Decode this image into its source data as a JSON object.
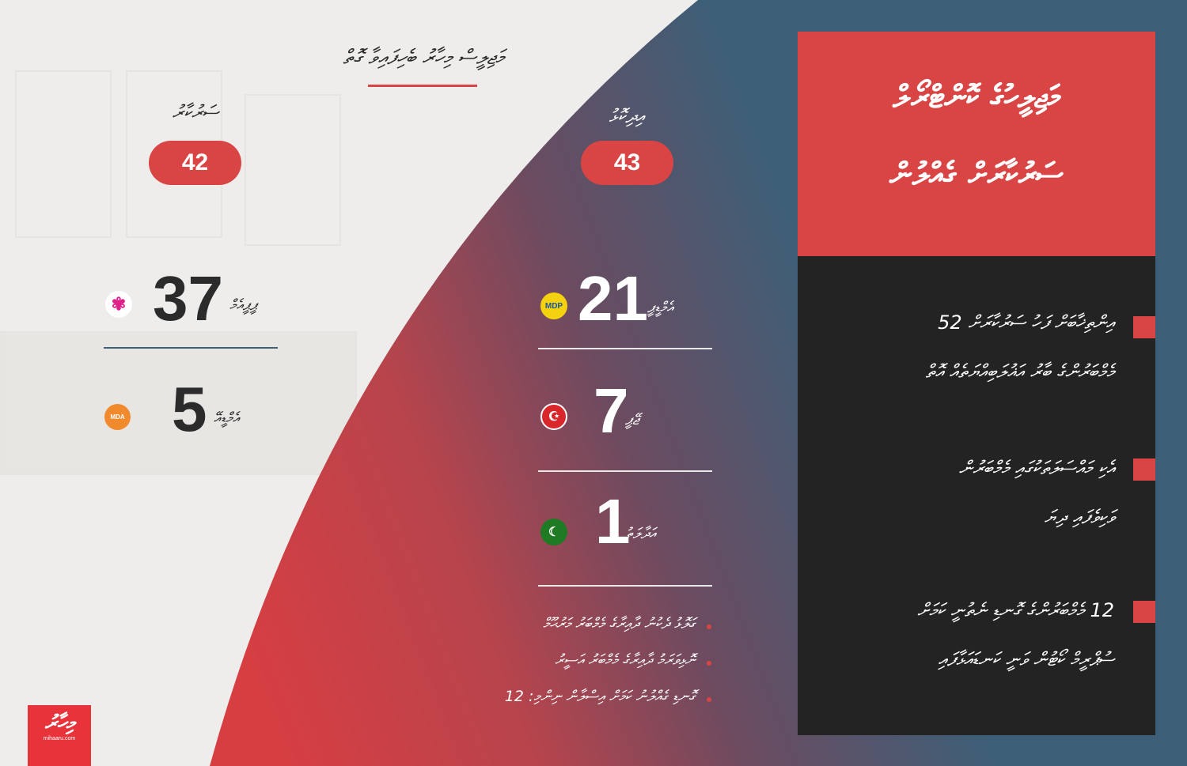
{
  "colors": {
    "accent": "#d94444",
    "dark": "#232323",
    "slate": "#3f6078"
  },
  "header": {
    "title": "މަޖިލީސް މިހާރު ބެހިފައިވާ ގޮތް"
  },
  "government": {
    "label": "ސަރުކާރު",
    "total": "42",
    "parties": [
      {
        "name": "ޕީޕީއެމް",
        "seats": "37",
        "logo": "ppm-palm-logo-icon"
      },
      {
        "name": "އެމްޑީއޭ",
        "seats": "5",
        "logo": "mda-logo-icon",
        "logo_text": "MDA"
      }
    ]
  },
  "opposition": {
    "label": "އިދިކޮޅު",
    "total": "43",
    "parties": [
      {
        "name": "އެމްޑީޕީ",
        "seats": "21",
        "logo": "mdp-scales-logo-icon",
        "logo_text": "MDP"
      },
      {
        "name": "ޖޭޕީ",
        "seats": "7",
        "logo": "jp-crescent-star-logo-icon"
      },
      {
        "name": "އަދާލަތު",
        "seats": "1",
        "logo": "adhaalath-logo-icon"
      }
    ]
  },
  "notes": [
    "ގަލޮޅު ދެކުނު ދާއިރާގެ މެމްބަރު މަރުޙޫމް",
    "ނޮޅިވަރަމު ދާއިރާގެ މެމްބަރު އަސީރު",
    "ގޮނޑި ގެއްލުނު ކަމަށް އިސްލާން ނިންމި: 12"
  ],
  "card": {
    "title_line1": "މަޖިލީހުގެ ކޮންޓްރޯލް",
    "title_line2": "ސަރުކާރަށް ގެއްލުން",
    "points": [
      {
        "line1": "އިންތިޚާބަށް ފަހު ސަރުކާރަށް 52",
        "line2": "މެމްބަރުންގެ ބާރު އަޣުލަބިއްޔަތެއް އޮތް"
      },
      {
        "line1": "އެކި މައްސަލަތަކުގައި މެމްބަރުން",
        "line2": "ވަކިވެފައި ދިޔަ"
      },
      {
        "line1": "12 މެމްބަރުންގެ ގޮނޑި ނެތުނީ ކަމަށް",
        "line2": "ސުޕްރީމް ކޯޓުން ވަނީ ކަނޑައަޅާފައި"
      }
    ]
  },
  "brand": {
    "logo_text": "މިހާރު",
    "site": "mihaaru.com"
  }
}
